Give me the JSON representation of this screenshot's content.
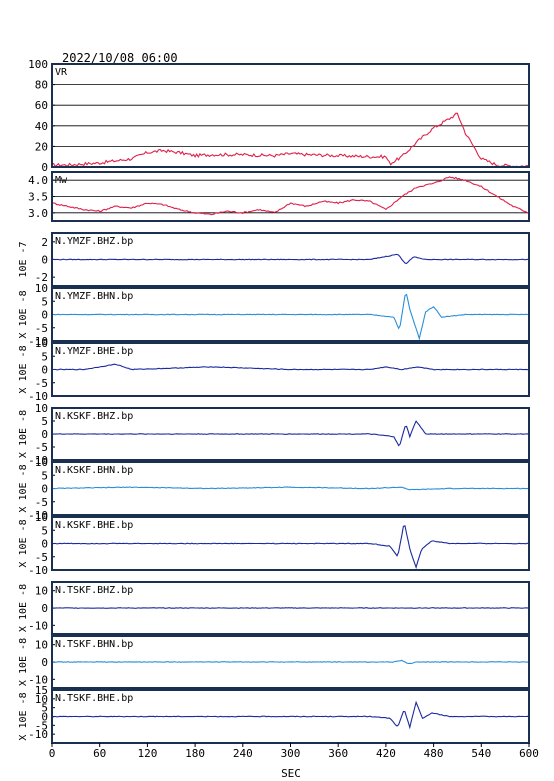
{
  "title": "2022/10/08 06:00",
  "xlabel": "SEC",
  "colors": {
    "frame": "#1a3050",
    "vrmw": "#e0204a",
    "bhz": "#1c2aa0",
    "bhn": "#2a8ed8",
    "bhe": "#1c2aa0"
  },
  "chart_data": {
    "type": "line",
    "xlim": [
      0,
      600
    ],
    "xticks": [
      "0",
      "60",
      "120",
      "180",
      "240",
      "300",
      "360",
      "420",
      "480",
      "540",
      "600"
    ],
    "panels": [
      {
        "label": "VR",
        "unit": "",
        "ylim": [
          0,
          100
        ],
        "yticks": [
          "0",
          "20",
          "40",
          "60",
          "80",
          "100"
        ],
        "grid": true,
        "color": "vrmw",
        "x": [
          0,
          20,
          60,
          100,
          120,
          140,
          160,
          180,
          200,
          240,
          280,
          300,
          320,
          360,
          400,
          420,
          425,
          440,
          460,
          480,
          500,
          510,
          520,
          540,
          560,
          580,
          600
        ],
        "y": [
          2,
          2,
          4,
          8,
          14,
          16,
          14,
          11,
          12,
          12,
          11,
          13,
          12,
          11,
          10,
          10,
          3,
          10,
          25,
          38,
          47,
          52,
          33,
          8,
          2,
          1,
          1
        ]
      },
      {
        "label": "Mw",
        "unit": "",
        "ylim": [
          2.75,
          4.25
        ],
        "yticks": [
          "3.0",
          "3.5",
          "4.0"
        ],
        "grid": true,
        "color": "vrmw",
        "x": [
          0,
          20,
          40,
          60,
          80,
          100,
          120,
          140,
          160,
          180,
          200,
          220,
          240,
          260,
          280,
          300,
          320,
          340,
          360,
          380,
          400,
          420,
          440,
          460,
          480,
          500,
          520,
          540,
          560,
          580,
          600
        ],
        "y": [
          3.3,
          3.2,
          3.1,
          3.05,
          3.2,
          3.15,
          3.3,
          3.25,
          3.1,
          3.0,
          2.95,
          3.05,
          3.0,
          3.1,
          3.0,
          3.3,
          3.2,
          3.35,
          3.3,
          3.4,
          3.35,
          3.1,
          3.5,
          3.8,
          3.9,
          4.1,
          4.0,
          3.8,
          3.5,
          3.2,
          3.0
        ]
      },
      {
        "label": "N.YMZF.BHZ.bp",
        "unit": "10E -7",
        "ylim": [
          -3,
          3
        ],
        "yticks": [
          "-2",
          "0",
          "2"
        ],
        "grid": false,
        "color": "bhz",
        "x": [
          0,
          400,
          435,
          445,
          455,
          470,
          600
        ],
        "y": [
          0,
          0,
          0.6,
          -0.5,
          0.3,
          0,
          0
        ]
      },
      {
        "label": "N.YMZF.BHN.bp",
        "unit": "X 10E -8",
        "ylim": [
          -10,
          10
        ],
        "yticks": [
          "-10",
          "-5",
          "0",
          "5",
          "10"
        ],
        "grid": false,
        "color": "bhn",
        "x": [
          0,
          400,
          430,
          437,
          445,
          450,
          462,
          470,
          480,
          490,
          520,
          600
        ],
        "y": [
          0,
          0,
          -1,
          -6,
          9,
          2,
          -9,
          1,
          3,
          -1,
          0,
          0
        ]
      },
      {
        "label": "N.YMZF.BHE.bp",
        "unit": "X 10E -8",
        "ylim": [
          -10,
          10
        ],
        "yticks": [
          "-10",
          "-5",
          "0",
          "5",
          "10"
        ],
        "grid": false,
        "color": "bhe",
        "x": [
          0,
          40,
          60,
          80,
          100,
          200,
          300,
          400,
          420,
          440,
          460,
          480,
          600
        ],
        "y": [
          0,
          0,
          1,
          2,
          0,
          1,
          0,
          0,
          1,
          0,
          1,
          0,
          0
        ]
      },
      {
        "label": "N.KSKF.BHZ.bp",
        "unit": "X 10E -8",
        "ylim": [
          -10,
          10
        ],
        "yticks": [
          "-10",
          "-5",
          "0",
          "5",
          "10"
        ],
        "grid": false,
        "color": "bhz",
        "x": [
          0,
          400,
          430,
          437,
          445,
          450,
          458,
          470,
          600
        ],
        "y": [
          0,
          0,
          -1,
          -5,
          4,
          -1,
          5,
          0,
          0
        ]
      },
      {
        "label": "N.KSKF.BHN.bp",
        "unit": "X 10E -8",
        "ylim": [
          -10,
          10
        ],
        "yticks": [
          "-10",
          "-5",
          "0",
          "5",
          "10"
        ],
        "grid": false,
        "color": "bhn",
        "x": [
          0,
          100,
          200,
          300,
          400,
          440,
          450,
          500,
          600
        ],
        "y": [
          0,
          0.5,
          0,
          0.5,
          0,
          0.5,
          -0.5,
          0,
          0
        ]
      },
      {
        "label": "N.KSKF.BHE.bp",
        "unit": "X 10E -8",
        "ylim": [
          -10,
          10
        ],
        "yticks": [
          "-10",
          "-5",
          "0",
          "5",
          "10"
        ],
        "grid": false,
        "color": "bhe",
        "x": [
          0,
          400,
          425,
          435,
          443,
          450,
          458,
          465,
          478,
          500,
          600
        ],
        "y": [
          0,
          0,
          -1,
          -5,
          8,
          -2,
          -9,
          -2,
          1,
          0,
          0
        ]
      },
      {
        "label": "N.TSKF.BHZ.bp",
        "unit": "X 10E -8",
        "ylim": [
          -15,
          15
        ],
        "yticks": [
          "-10",
          "0",
          "10"
        ],
        "grid": false,
        "color": "bhz",
        "x": [
          0,
          600
        ],
        "y": [
          0,
          0
        ]
      },
      {
        "label": "N.TSKF.BHN.bp",
        "unit": "X 10E -8",
        "ylim": [
          -15,
          15
        ],
        "yticks": [
          "-10",
          "0",
          "10"
        ],
        "grid": false,
        "color": "bhn",
        "x": [
          0,
          430,
          440,
          448,
          460,
          600
        ],
        "y": [
          0,
          0,
          1,
          -1,
          0,
          0
        ]
      },
      {
        "label": "N.TSKF.BHE.bp",
        "unit": "X 10E -8",
        "ylim": [
          -15,
          15
        ],
        "yticks": [
          "-10",
          "-5",
          "0",
          "5",
          "10",
          "15"
        ],
        "grid": false,
        "color": "bhe",
        "x": [
          0,
          400,
          425,
          435,
          443,
          450,
          458,
          466,
          478,
          500,
          600
        ],
        "y": [
          0,
          0,
          -1,
          -6,
          4,
          -6,
          8,
          -1,
          2,
          0,
          0
        ]
      }
    ]
  }
}
